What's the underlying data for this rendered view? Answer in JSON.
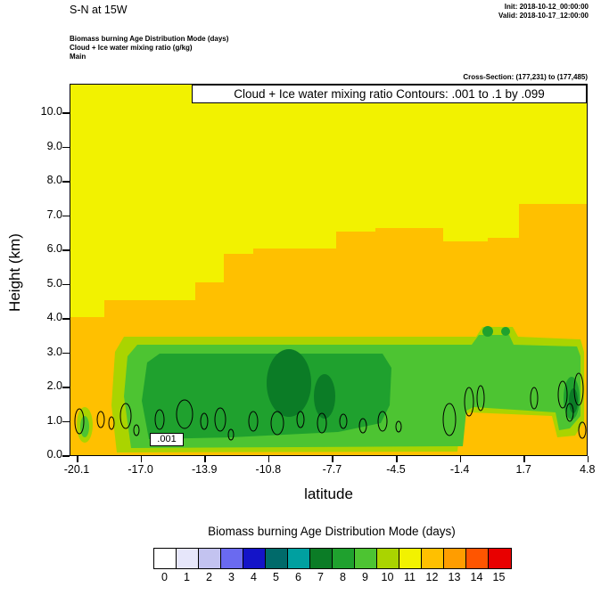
{
  "header": {
    "title": "S-N at 15W",
    "init": "Init: 2018-10-12_00:00:00",
    "valid": "Valid: 2018-10-17_12:00:00",
    "legend_line_1": "Biomass burning Age Distribution Mode   (days)",
    "legend_line_2": "Cloud + Ice water mixing ratio   (g/kg)",
    "legend_line_3": "Main",
    "cross_section": "Cross-Section: (177,231) to (177,485)"
  },
  "plot": {
    "contour_info": "Cloud + Ice water mixing ratio Contours: .001 to .1 by .099",
    "contour_label": ".001",
    "xlabel": "latitude",
    "ylabel": "Height (km)",
    "x_ticks": [
      "-20.1",
      "-17.0",
      "-13.9",
      "-10.8",
      "-7.7",
      "-4.5",
      "-1.4",
      "1.7",
      "4.8"
    ],
    "y_ticks": [
      "0.0",
      "1.0",
      "2.0",
      "3.0",
      "4.0",
      "5.0",
      "6.0",
      "7.0",
      "8.0",
      "9.0",
      "10.0"
    ]
  },
  "colorbar": {
    "title": "Biomass burning Age Distribution Mode  (days)",
    "labels": [
      "0",
      "1",
      "2",
      "3",
      "4",
      "5",
      "6",
      "7",
      "8",
      "9",
      "10",
      "11",
      "12",
      "13",
      "14",
      "15"
    ],
    "colors": [
      "#ffffff",
      "#e6e6fa",
      "#c3c3f0",
      "#6a6af0",
      "#1414c8",
      "#006a6a",
      "#00a0a0",
      "#0b7c26",
      "#1fa12e",
      "#4dc432",
      "#aad400",
      "#f2f200",
      "#ffc000",
      "#ff9d00",
      "#ff5500",
      "#e80000"
    ]
  },
  "chart_data": {
    "type": "heatmap",
    "title": "S-N at 15W",
    "xlabel": "latitude",
    "ylabel": "Height (km)",
    "x_ticks": [
      -20.1,
      -17.0,
      -13.9,
      -10.8,
      -7.7,
      -4.5,
      -1.4,
      1.7,
      4.8
    ],
    "xlim": [
      -20.1,
      4.8
    ],
    "ylim": [
      0.0,
      10.8
    ],
    "fill_field": "Biomass burning Age Distribution Mode (days)",
    "fill_levels": [
      0,
      1,
      2,
      3,
      4,
      5,
      6,
      7,
      8,
      9,
      10,
      11,
      12,
      13,
      14,
      15
    ],
    "legend_position": "bottom",
    "overlay_contours": {
      "field": "Cloud + Ice water mixing ratio (g/kg)",
      "levels_from": 0.001,
      "levels_to": 0.1,
      "levels_by": 0.099,
      "labeled_level": 0.001,
      "description": "small closed 0.001 g/kg contours near 0.5-2 km between latitudes -19 and 5"
    },
    "regions": [
      {
        "value_days": 11,
        "color": "#f2f200",
        "extent": "upper region ~4-10.8 km across all latitudes (background yellow)"
      },
      {
        "value_days": 12,
        "color": "#ffc000",
        "extent": "mid-level band, top rises stepwise from ~4 km at -20 to ~6.5 km near -8, reaching ~7.3 km between 1.7 and 4.8; extends to surface outside plume"
      },
      {
        "value_days": 10,
        "color": "#aad400",
        "extent": "fringe of low-level plume, ~0.1-3.4 km from -18.7 to 4.8, bottom lifted to ~1.1 km right of -1.4"
      },
      {
        "value_days": 9,
        "color": "#4dc432",
        "extent": "low-level plume ~0.2-3.2 km from -18.3 to 4.8"
      },
      {
        "value_days": 8,
        "color": "#1fa12e",
        "extent": "plume core ~0.5-3.0 km from -17 to -4.5, small cell at right edge 0.8-2.2 km"
      },
      {
        "value_days": 7,
        "color": "#0b7c26",
        "extent": "innermost core patches near -10 at 1.2-3.0 km and at right edge ~1-1.7 km"
      }
    ]
  }
}
